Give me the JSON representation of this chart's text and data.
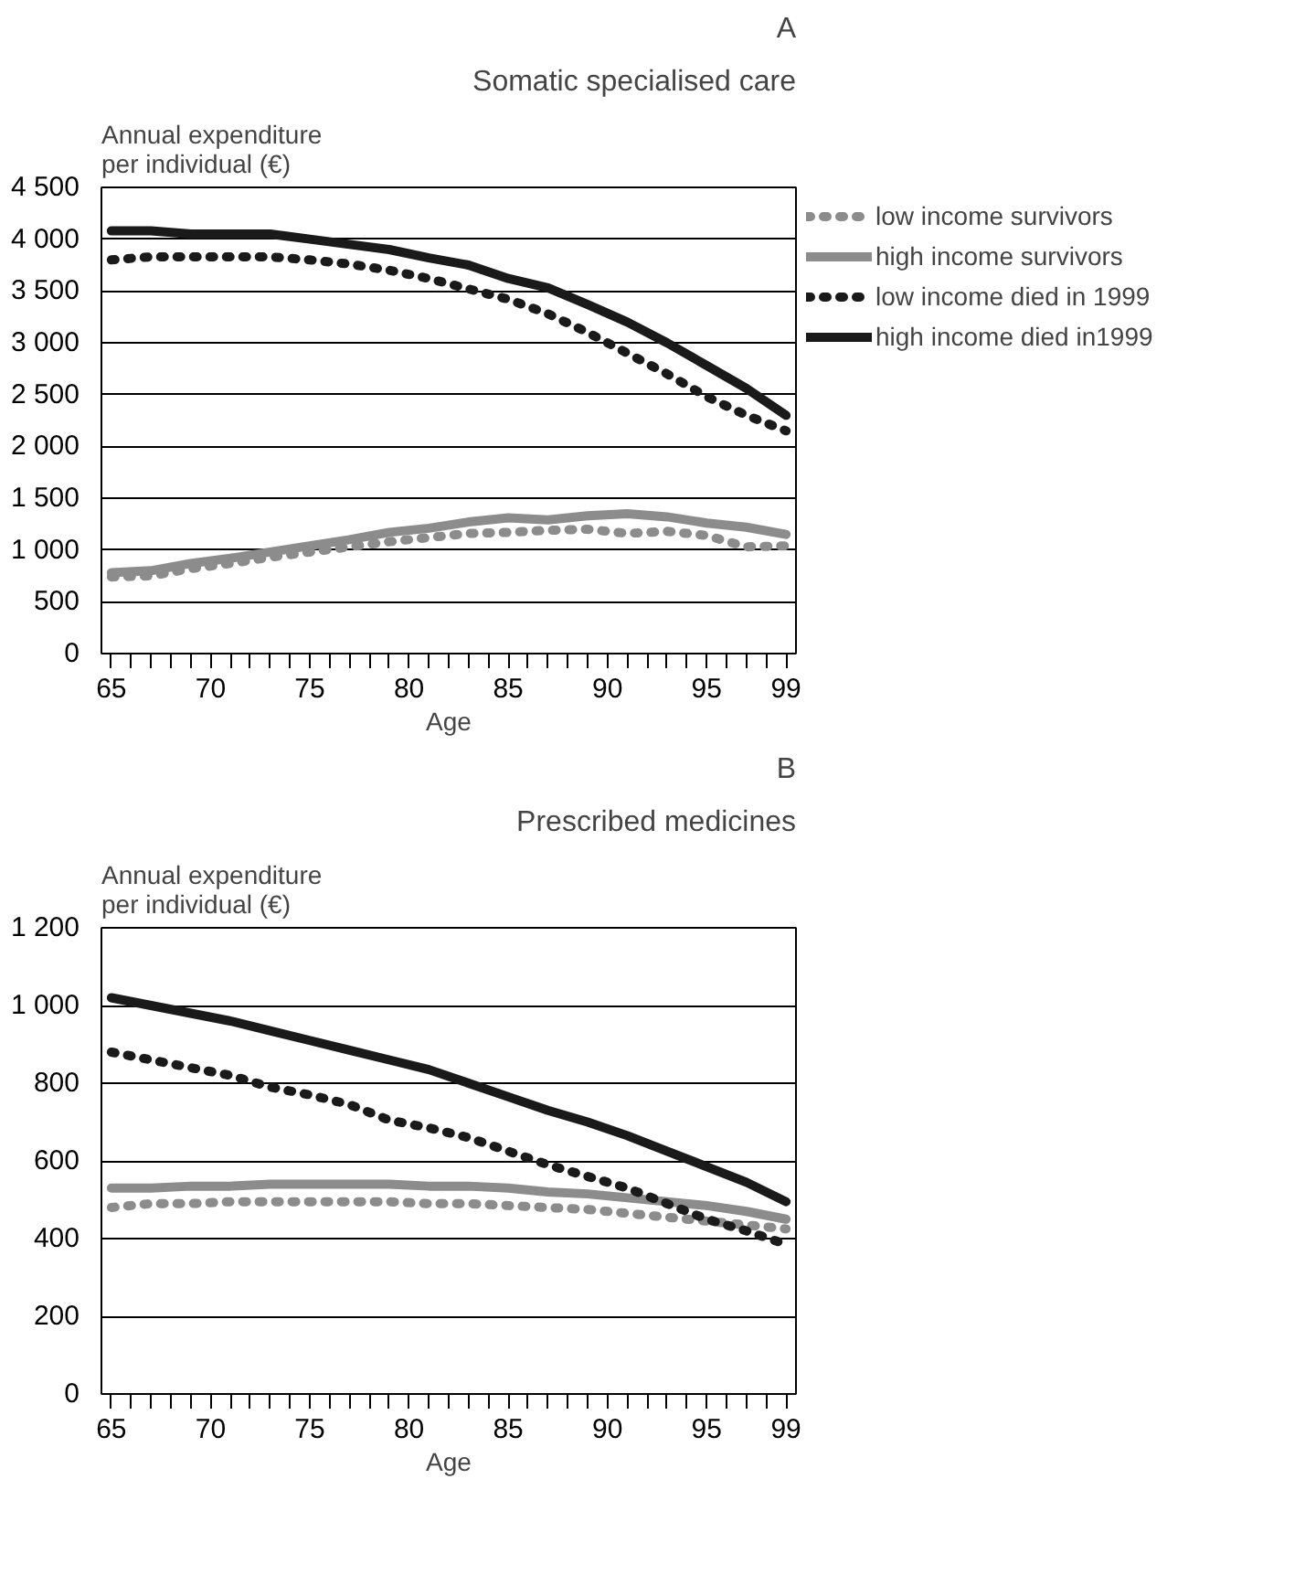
{
  "chart_data": [
    {
      "type": "line",
      "title": "Somatic specialised care",
      "annotations": [
        "A"
      ],
      "ylabel": "Annual expenditure per individual (€)",
      "xlabel": "Age",
      "grid": "y",
      "legend": "right",
      "marker": "none",
      "x": [
        65,
        67,
        69,
        71,
        73,
        75,
        77,
        79,
        81,
        83,
        85,
        87,
        89,
        91,
        93,
        95,
        97,
        99
      ],
      "xlim": [
        64.5,
        99.5
      ],
      "ylim": [
        0,
        4500
      ],
      "yticks": [
        0,
        500,
        {
          "value": 1000,
          "label": "1 000"
        },
        {
          "value": 1500,
          "label": "1 500"
        },
        {
          "value": 2000,
          "label": "2 000"
        },
        {
          "value": 2500,
          "label": "2 500"
        },
        {
          "value": 3000,
          "label": "3 000"
        },
        {
          "value": 3500,
          "label": "3 500"
        },
        {
          "value": 4000,
          "label": "4 000"
        },
        {
          "value": 4500,
          "label": "4 500"
        }
      ],
      "xticks": [
        65,
        {
          "value": 66,
          "label": null
        },
        {
          "value": 67,
          "label": null
        },
        {
          "value": 68,
          "label": null
        },
        {
          "value": 69,
          "label": null
        },
        70,
        {
          "value": 71,
          "label": null
        },
        {
          "value": 72,
          "label": null
        },
        {
          "value": 73,
          "label": null
        },
        {
          "value": 74,
          "label": null
        },
        75,
        {
          "value": 76,
          "label": null
        },
        {
          "value": 77,
          "label": null
        },
        {
          "value": 78,
          "label": null
        },
        {
          "value": 79,
          "label": null
        },
        80,
        {
          "value": 81,
          "label": null
        },
        {
          "value": 82,
          "label": null
        },
        {
          "value": 83,
          "label": null
        },
        {
          "value": 84,
          "label": null
        },
        85,
        {
          "value": 86,
          "label": null
        },
        {
          "value": 87,
          "label": null
        },
        {
          "value": 88,
          "label": null
        },
        {
          "value": 89,
          "label": null
        },
        90,
        {
          "value": 91,
          "label": null
        },
        {
          "value": 92,
          "label": null
        },
        {
          "value": 93,
          "label": null
        },
        {
          "value": 94,
          "label": null
        },
        95,
        {
          "value": 96,
          "label": null
        },
        {
          "value": 97,
          "label": null
        },
        {
          "value": 98,
          "label": null
        },
        99
      ],
      "series": [
        {
          "name": "low income survivors",
          "color": "#8c8c8c",
          "line_style": "dotted",
          "values": [
            740,
            750,
            820,
            870,
            930,
            980,
            1030,
            1080,
            1120,
            1160,
            1170,
            1190,
            1200,
            1160,
            1180,
            1140,
            1030,
            1040
          ]
        },
        {
          "name": "high income survivors",
          "color": "#8c8c8c",
          "line_style": "solid",
          "values": [
            780,
            800,
            870,
            920,
            980,
            1040,
            1100,
            1170,
            1210,
            1270,
            1310,
            1290,
            1330,
            1350,
            1320,
            1260,
            1220,
            1150
          ]
        },
        {
          "name": "low income died in 1999",
          "color": "#1a1a1a",
          "line_style": "dotted",
          "values": [
            3800,
            3830,
            3830,
            3830,
            3830,
            3800,
            3760,
            3700,
            3620,
            3520,
            3420,
            3280,
            3100,
            2900,
            2700,
            2480,
            2300,
            2150
          ]
        },
        {
          "name": "high income died in1999",
          "color": "#1a1a1a",
          "line_style": "solid",
          "values": [
            4080,
            4080,
            4050,
            4050,
            4050,
            4000,
            3950,
            3900,
            3820,
            3750,
            3620,
            3530,
            3370,
            3200,
            3000,
            2780,
            2560,
            2300
          ]
        }
      ]
    },
    {
      "type": "line",
      "title": "Prescribed medicines",
      "annotations": [
        "B"
      ],
      "ylabel": "Annual expenditure per individual (€)",
      "xlabel": "Age",
      "grid": "y",
      "marker": "none",
      "x": [
        65,
        67,
        69,
        71,
        73,
        75,
        77,
        79,
        81,
        83,
        85,
        87,
        89,
        91,
        93,
        95,
        97,
        99
      ],
      "xlim": [
        64.5,
        99.5
      ],
      "ylim": [
        0,
        1200
      ],
      "yticks": [
        0,
        200,
        400,
        600,
        800,
        {
          "value": 1000,
          "label": "1 000"
        },
        {
          "value": 1200,
          "label": "1 200"
        }
      ],
      "xticks": [
        65,
        {
          "value": 66,
          "label": null
        },
        {
          "value": 67,
          "label": null
        },
        {
          "value": 68,
          "label": null
        },
        {
          "value": 69,
          "label": null
        },
        70,
        {
          "value": 71,
          "label": null
        },
        {
          "value": 72,
          "label": null
        },
        {
          "value": 73,
          "label": null
        },
        {
          "value": 74,
          "label": null
        },
        75,
        {
          "value": 76,
          "label": null
        },
        {
          "value": 77,
          "label": null
        },
        {
          "value": 78,
          "label": null
        },
        {
          "value": 79,
          "label": null
        },
        80,
        {
          "value": 81,
          "label": null
        },
        {
          "value": 82,
          "label": null
        },
        {
          "value": 83,
          "label": null
        },
        {
          "value": 84,
          "label": null
        },
        85,
        {
          "value": 86,
          "label": null
        },
        {
          "value": 87,
          "label": null
        },
        {
          "value": 88,
          "label": null
        },
        {
          "value": 89,
          "label": null
        },
        90,
        {
          "value": 91,
          "label": null
        },
        {
          "value": 92,
          "label": null
        },
        {
          "value": 93,
          "label": null
        },
        {
          "value": 94,
          "label": null
        },
        95,
        {
          "value": 96,
          "label": null
        },
        {
          "value": 97,
          "label": null
        },
        {
          "value": 98,
          "label": null
        },
        99
      ],
      "series": [
        {
          "color": "#8c8c8c",
          "line_style": "dotted",
          "values": [
            480,
            490,
            490,
            495,
            495,
            495,
            495,
            495,
            490,
            490,
            485,
            480,
            475,
            465,
            455,
            445,
            435,
            425
          ]
        },
        {
          "color": "#8c8c8c",
          "line_style": "solid",
          "values": [
            530,
            530,
            535,
            535,
            540,
            540,
            540,
            540,
            535,
            535,
            530,
            520,
            515,
            505,
            495,
            485,
            470,
            450
          ]
        },
        {
          "color": "#1a1a1a",
          "line_style": "dotted",
          "values": [
            880,
            860,
            840,
            820,
            790,
            770,
            745,
            705,
            685,
            660,
            625,
            590,
            560,
            530,
            490,
            450,
            420,
            385
          ]
        },
        {
          "color": "#1a1a1a",
          "line_style": "solid",
          "values": [
            1020,
            1000,
            980,
            960,
            935,
            910,
            885,
            860,
            835,
            800,
            765,
            730,
            700,
            665,
            625,
            585,
            545,
            495
          ]
        }
      ]
    }
  ]
}
